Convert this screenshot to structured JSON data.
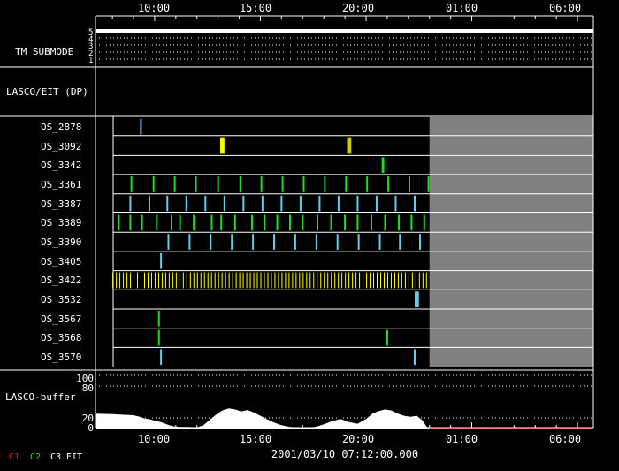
{
  "chart_data": {
    "type": "timeline",
    "time_axis": {
      "start": "2001-03-10T07:12:00",
      "end": "2001-03-11T06:45:00",
      "tick_labels": [
        "10:00",
        "15:00",
        "20:00",
        "01:00",
        "06:00"
      ],
      "tick_hours": [
        10,
        15,
        20,
        25,
        30
      ],
      "date_label": "2001/03/10 07:12:00.000",
      "no_data_from_hour": 23.0
    },
    "colors": {
      "background": "#000000",
      "axis": "#ffffff",
      "no_data": "#808080",
      "cyan": "#66ccee",
      "green": "#22dd22",
      "yellow": "#ffff00",
      "olive": "#cccc00",
      "buffer_fill": "#ffffff",
      "buffer_zero_line": "#cc0000"
    },
    "tm_submode": {
      "label": "TM SUBMODE",
      "levels": [
        "5",
        "4",
        "3",
        "2",
        "1"
      ],
      "value": 5
    },
    "lasco_eit_dp": {
      "label": "LASCO/EIT (DP)"
    },
    "os_tracks": [
      {
        "name": "OS_2878",
        "events": [
          {
            "t": 9.35,
            "c": "cyan"
          }
        ]
      },
      {
        "name": "OS_3092",
        "events": [
          {
            "t": 13.2,
            "w": 0.2,
            "c": "yellow"
          },
          {
            "t": 19.2,
            "w": 0.2,
            "c": "olive"
          }
        ]
      },
      {
        "name": "OS_3342",
        "events": [
          {
            "t": 20.8,
            "w": 0.12,
            "c": "green"
          }
        ]
      },
      {
        "name": "OS_3361",
        "events": [
          {
            "t": 8.9,
            "c": "green"
          },
          {
            "t": 9.95,
            "c": "green"
          },
          {
            "t": 10.95,
            "c": "green"
          },
          {
            "t": 11.95,
            "c": "green"
          },
          {
            "t": 13.0,
            "c": "green"
          },
          {
            "t": 14.05,
            "c": "green"
          },
          {
            "t": 15.05,
            "c": "green"
          },
          {
            "t": 16.05,
            "c": "green"
          },
          {
            "t": 17.05,
            "c": "green"
          },
          {
            "t": 18.05,
            "c": "green"
          },
          {
            "t": 19.05,
            "c": "green"
          },
          {
            "t": 20.05,
            "c": "green"
          },
          {
            "t": 21.05,
            "c": "green"
          },
          {
            "t": 22.05,
            "c": "green"
          },
          {
            "t": 22.95,
            "c": "green"
          }
        ]
      },
      {
        "name": "OS_3387",
        "events": [
          {
            "t": 8.85,
            "c": "cyan"
          },
          {
            "t": 9.75,
            "c": "cyan"
          },
          {
            "t": 10.6,
            "c": "cyan"
          },
          {
            "t": 11.5,
            "c": "cyan"
          },
          {
            "t": 12.4,
            "c": "cyan"
          },
          {
            "t": 13.3,
            "c": "cyan"
          },
          {
            "t": 14.2,
            "c": "cyan"
          },
          {
            "t": 15.1,
            "c": "cyan"
          },
          {
            "t": 16.0,
            "c": "cyan"
          },
          {
            "t": 16.9,
            "c": "cyan"
          },
          {
            "t": 17.8,
            "c": "cyan"
          },
          {
            "t": 18.7,
            "c": "cyan"
          },
          {
            "t": 19.6,
            "c": "cyan"
          },
          {
            "t": 20.5,
            "c": "cyan"
          },
          {
            "t": 21.4,
            "c": "cyan"
          },
          {
            "t": 22.3,
            "c": "cyan"
          }
        ]
      },
      {
        "name": "OS_3389",
        "events": [
          {
            "t": 8.3,
            "c": "green"
          },
          {
            "t": 8.85,
            "c": "green"
          },
          {
            "t": 9.4,
            "c": "green"
          },
          {
            "t": 10.1,
            "c": "green"
          },
          {
            "t": 10.8,
            "c": "green"
          },
          {
            "t": 11.2,
            "c": "green"
          },
          {
            "t": 11.85,
            "c": "green"
          },
          {
            "t": 12.7,
            "c": "green"
          },
          {
            "t": 13.15,
            "c": "green"
          },
          {
            "t": 13.8,
            "c": "green"
          },
          {
            "t": 14.6,
            "c": "green"
          },
          {
            "t": 15.2,
            "c": "green"
          },
          {
            "t": 15.8,
            "c": "green"
          },
          {
            "t": 16.4,
            "c": "green"
          },
          {
            "t": 17.0,
            "c": "green"
          },
          {
            "t": 17.7,
            "c": "green"
          },
          {
            "t": 18.35,
            "c": "green"
          },
          {
            "t": 19.0,
            "c": "green"
          },
          {
            "t": 19.6,
            "c": "green"
          },
          {
            "t": 20.25,
            "c": "green"
          },
          {
            "t": 20.9,
            "c": "green"
          },
          {
            "t": 21.55,
            "c": "green"
          },
          {
            "t": 22.15,
            "c": "green"
          },
          {
            "t": 22.75,
            "c": "green"
          }
        ]
      },
      {
        "name": "OS_3390",
        "events": [
          {
            "t": 10.65,
            "c": "cyan"
          },
          {
            "t": 11.65,
            "c": "cyan"
          },
          {
            "t": 12.65,
            "c": "cyan"
          },
          {
            "t": 13.65,
            "c": "cyan"
          },
          {
            "t": 14.65,
            "c": "cyan"
          },
          {
            "t": 15.65,
            "c": "cyan"
          },
          {
            "t": 16.65,
            "c": "cyan"
          },
          {
            "t": 17.65,
            "c": "cyan"
          },
          {
            "t": 18.65,
            "c": "cyan"
          },
          {
            "t": 19.65,
            "c": "cyan"
          },
          {
            "t": 20.65,
            "c": "cyan"
          },
          {
            "t": 21.6,
            "c": "cyan"
          },
          {
            "t": 22.55,
            "c": "cyan"
          }
        ]
      },
      {
        "name": "OS_3405",
        "events": [
          {
            "t": 10.3,
            "c": "cyan"
          }
        ]
      },
      {
        "name": "OS_3422",
        "dense": {
          "from": 8.0,
          "to": 23.0,
          "step": 0.1667,
          "c": "yellow"
        }
      },
      {
        "name": "OS_3532",
        "events": [
          {
            "t": 22.4,
            "w": 0.2,
            "c": "cyan"
          }
        ]
      },
      {
        "name": "OS_3567",
        "events": [
          {
            "t": 10.2,
            "c": "green"
          }
        ]
      },
      {
        "name": "OS_3568",
        "events": [
          {
            "t": 10.2,
            "c": "green"
          },
          {
            "t": 21.0,
            "c": "green"
          }
        ]
      },
      {
        "name": "OS_3570",
        "events": [
          {
            "t": 10.3,
            "c": "cyan"
          },
          {
            "t": 22.3,
            "w": 0.08,
            "c": "cyan"
          }
        ]
      }
    ],
    "buffer": {
      "label": "LASCO-buffer",
      "y_ticks": [
        "100",
        "80",
        "20",
        "0"
      ],
      "y_tick_values": [
        100,
        80,
        20,
        0
      ],
      "ymax": 100,
      "series": [
        [
          7.2,
          28
        ],
        [
          8.0,
          27
        ],
        [
          8.5,
          26
        ],
        [
          9.0,
          25
        ],
        [
          9.3,
          22
        ],
        [
          9.5,
          19
        ],
        [
          9.7,
          18
        ],
        [
          9.9,
          16
        ],
        [
          10.1,
          14
        ],
        [
          10.3,
          12
        ],
        [
          10.5,
          9
        ],
        [
          10.7,
          6
        ],
        [
          10.9,
          4
        ],
        [
          11.2,
          3
        ],
        [
          11.6,
          3
        ],
        [
          12.0,
          2
        ],
        [
          12.3,
          6
        ],
        [
          12.6,
          16
        ],
        [
          12.9,
          26
        ],
        [
          13.2,
          34
        ],
        [
          13.5,
          38
        ],
        [
          13.8,
          36
        ],
        [
          14.1,
          32
        ],
        [
          14.4,
          35
        ],
        [
          14.7,
          30
        ],
        [
          15.0,
          24
        ],
        [
          15.3,
          18
        ],
        [
          15.6,
          12
        ],
        [
          16.0,
          6
        ],
        [
          16.4,
          3
        ],
        [
          16.8,
          2
        ],
        [
          17.2,
          2
        ],
        [
          17.6,
          3
        ],
        [
          18.0,
          8
        ],
        [
          18.4,
          14
        ],
        [
          18.8,
          18
        ],
        [
          19.2,
          12
        ],
        [
          19.6,
          9
        ],
        [
          20.0,
          18
        ],
        [
          20.3,
          28
        ],
        [
          20.6,
          33
        ],
        [
          20.9,
          36
        ],
        [
          21.2,
          34
        ],
        [
          21.5,
          28
        ],
        [
          21.8,
          24
        ],
        [
          22.1,
          22
        ],
        [
          22.4,
          24
        ],
        [
          22.7,
          14
        ],
        [
          22.85,
          4
        ],
        [
          23.0,
          0
        ],
        [
          30.75,
          0
        ]
      ]
    },
    "legend": [
      {
        "label": "C1",
        "color": "#dd2222"
      },
      {
        "label": "C2",
        "color": "#22dd22"
      },
      {
        "label": "C3",
        "color": "#ffffff"
      },
      {
        "label": "EIT",
        "color": "#ffffff"
      }
    ]
  }
}
